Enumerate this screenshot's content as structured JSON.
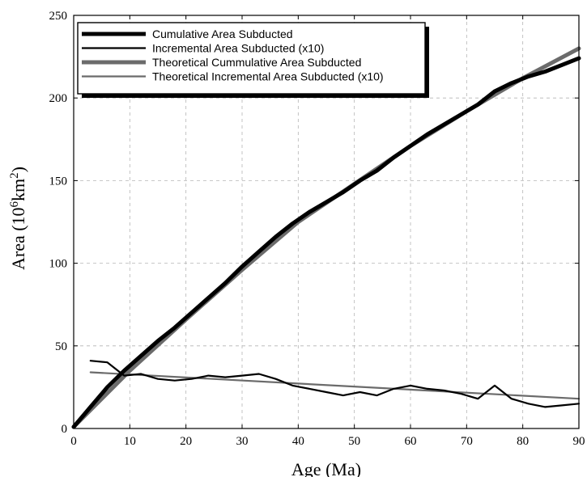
{
  "chart_data": {
    "type": "line",
    "xlabel": "Age (Ma)",
    "ylabel": {
      "prefix": "Area (10",
      "sup1": "6",
      "mid": "km",
      "sup2": "2",
      "suffix": ")"
    },
    "xlim": [
      0,
      90
    ],
    "ylim": [
      0,
      250
    ],
    "xticks": [
      0,
      10,
      20,
      30,
      40,
      50,
      60,
      70,
      80,
      90
    ],
    "yticks": [
      0,
      50,
      100,
      150,
      200,
      250
    ],
    "grid": true,
    "legend_position": "top-left",
    "series": [
      {
        "name": "Cumulative  Area Subducted",
        "color": "#000000",
        "style": "thick",
        "x": [
          0,
          3,
          6,
          9,
          12,
          15,
          18,
          21,
          24,
          27,
          30,
          33,
          36,
          39,
          42,
          45,
          48,
          51,
          54,
          57,
          60,
          63,
          66,
          69,
          72,
          75,
          78,
          81,
          84,
          87,
          90
        ],
        "y": [
          1,
          13,
          25,
          35,
          44,
          53,
          61,
          70,
          79,
          88,
          98,
          107,
          116,
          124,
          131,
          137,
          143,
          150,
          156,
          164,
          171,
          178,
          184,
          190,
          196,
          204,
          209,
          213,
          216,
          220,
          224
        ]
      },
      {
        "name": "Incremental Area Subducted (x10)",
        "color": "#000000",
        "style": "thin",
        "x": [
          3,
          6,
          9,
          12,
          15,
          18,
          21,
          24,
          27,
          30,
          33,
          36,
          39,
          42,
          45,
          48,
          51,
          54,
          57,
          60,
          63,
          66,
          69,
          72,
          75,
          78,
          81,
          84,
          87,
          90
        ],
        "y": [
          41,
          40,
          32,
          33,
          30,
          29,
          30,
          32,
          31,
          32,
          33,
          30,
          26,
          24,
          22,
          20,
          22,
          20,
          24,
          26,
          24,
          23,
          21,
          18,
          26,
          18,
          15,
          13,
          14,
          15
        ]
      },
      {
        "name": "Theoretical Cummulative Area Subducted",
        "color": "#6b6b6b",
        "style": "thick",
        "x": [
          0,
          10,
          20,
          30,
          40,
          50,
          60,
          70,
          80,
          90
        ],
        "y": [
          1,
          35,
          66,
          96,
          125,
          148,
          171,
          192,
          212,
          230
        ]
      },
      {
        "name": "Theoretical Incremental Area Subducted  (x10)",
        "color": "#6b6b6b",
        "style": "thin",
        "x": [
          3,
          90
        ],
        "y": [
          34,
          18
        ]
      }
    ]
  }
}
